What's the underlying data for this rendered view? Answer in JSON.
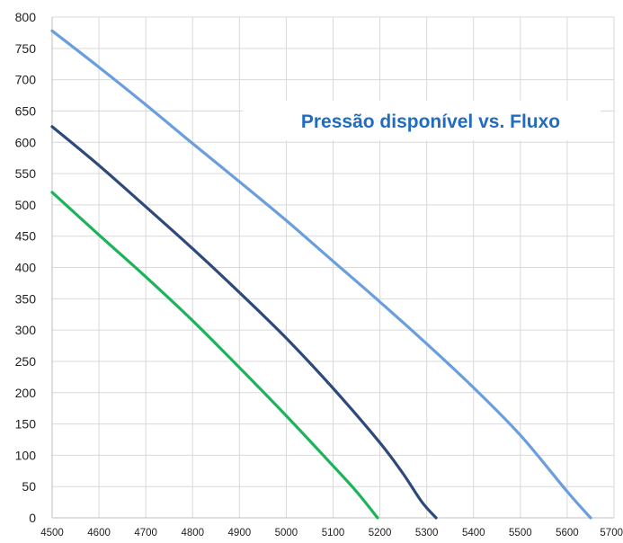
{
  "chart_data": {
    "type": "line",
    "title": "Pressão disponível vs. Fluxo",
    "xlabel": "",
    "ylabel": "",
    "xlim": [
      4500,
      5700
    ],
    "ylim": [
      0,
      800
    ],
    "x_ticks": [
      4500,
      4600,
      4700,
      4800,
      4900,
      5000,
      5100,
      5200,
      5300,
      5400,
      5500,
      5600,
      5700
    ],
    "y_ticks": [
      0,
      50,
      100,
      150,
      200,
      250,
      300,
      350,
      400,
      450,
      500,
      550,
      600,
      650,
      700,
      750,
      800
    ],
    "grid": true,
    "series": [
      {
        "color": "#6a9edc",
        "points": [
          [
            4500,
            778
          ],
          [
            4600,
            720
          ],
          [
            4700,
            660
          ],
          [
            4800,
            598
          ],
          [
            4900,
            537
          ],
          [
            5000,
            475
          ],
          [
            5100,
            410
          ],
          [
            5200,
            345
          ],
          [
            5300,
            278
          ],
          [
            5400,
            208
          ],
          [
            5500,
            132
          ],
          [
            5600,
            42
          ],
          [
            5650,
            0
          ]
        ]
      },
      {
        "color": "#2e4a7a",
        "points": [
          [
            4500,
            625
          ],
          [
            4600,
            563
          ],
          [
            4700,
            497
          ],
          [
            4800,
            430
          ],
          [
            4900,
            360
          ],
          [
            5000,
            287
          ],
          [
            5100,
            207
          ],
          [
            5200,
            120
          ],
          [
            5250,
            70
          ],
          [
            5290,
            25
          ],
          [
            5320,
            0
          ]
        ]
      },
      {
        "color": "#1db35a",
        "points": [
          [
            4500,
            520
          ],
          [
            4600,
            452
          ],
          [
            4700,
            385
          ],
          [
            4800,
            315
          ],
          [
            4900,
            240
          ],
          [
            5000,
            163
          ],
          [
            5100,
            83
          ],
          [
            5150,
            42
          ],
          [
            5195,
            0
          ]
        ]
      }
    ],
    "title_color": "#1f6cc0"
  }
}
